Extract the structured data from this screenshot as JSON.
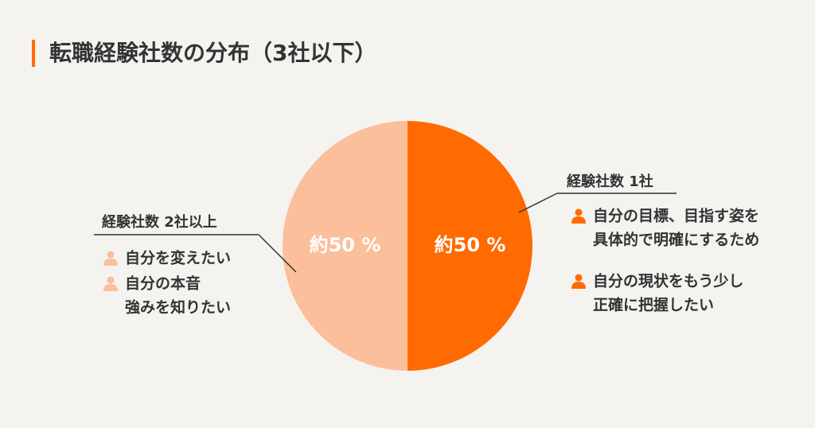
{
  "chart_data": {
    "type": "pie",
    "title": "転職経験社数の分布（3社以下）",
    "categories": [
      "経験社数 1社",
      "経験社数 2社以上"
    ],
    "values": [
      50,
      50
    ],
    "value_labels": [
      "約50 %",
      "約50 %"
    ],
    "colors": [
      "#ff6b00",
      "#fbbf9b"
    ],
    "reasons": [
      [
        [
          "自分の目標、目指す姿を",
          "具体的で明確にするため"
        ],
        [
          "自分の現状をもう少し",
          "正確に把握したい"
        ]
      ],
      [
        [
          "自分を変えたい"
        ],
        [
          "自分の本音",
          "強みを知りたい"
        ]
      ]
    ]
  }
}
